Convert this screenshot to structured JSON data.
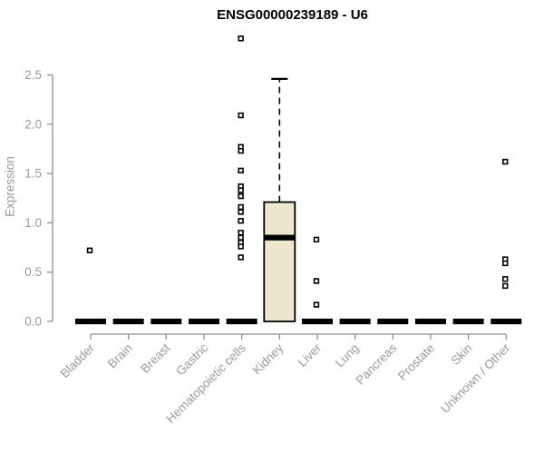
{
  "title": "ENSG00000239189 - U6",
  "colors": {
    "background": "#ffffff",
    "box_fill": "#ECE7CD",
    "box_stroke": "#000000",
    "median": "#000000",
    "outlier_stroke": "#000000",
    "outlier_fill": "#ffffff",
    "axis": "#8f8f8f",
    "tick_label": "#9a9a9a",
    "title_color": "#000000"
  },
  "chart_data": {
    "type": "boxplot",
    "title": "ENSG00000239189 - U6",
    "ylabel": "Expression",
    "xlabel": "",
    "ylim": [
      0,
      2.9
    ],
    "grid": false,
    "legend": "none",
    "y_ticks": [
      0,
      0.5,
      1,
      1.5,
      2,
      2.5
    ],
    "y_tick_labels": [
      "0.0",
      "0.5",
      "1.0",
      "1.5",
      "2.0",
      "2.5"
    ],
    "categories": [
      "Bladder",
      "Brain",
      "Breast",
      "Gastric",
      "Hematopoietic cells",
      "Kidney",
      "Liver",
      "Lung",
      "Pancreas",
      "Prostate",
      "Skin",
      "Unknown / Other"
    ],
    "boxes": [
      {
        "category": "Bladder",
        "q1": 0,
        "median": 0,
        "q3": 0,
        "whisker_low": 0,
        "whisker_high": 0,
        "outliers": [
          0.72
        ]
      },
      {
        "category": "Brain",
        "q1": 0,
        "median": 0,
        "q3": 0,
        "whisker_low": 0,
        "whisker_high": 0,
        "outliers": []
      },
      {
        "category": "Breast",
        "q1": 0,
        "median": 0,
        "q3": 0,
        "whisker_low": 0,
        "whisker_high": 0,
        "outliers": []
      },
      {
        "category": "Gastric",
        "q1": 0,
        "median": 0,
        "q3": 0,
        "whisker_low": 0,
        "whisker_high": 0,
        "outliers": []
      },
      {
        "category": "Hematopoietic cells",
        "q1": 0,
        "median": 0,
        "q3": 0,
        "whisker_low": 0,
        "whisker_high": 0,
        "outliers": [
          2.87,
          2.09,
          1.77,
          1.73,
          1.53,
          1.37,
          1.33,
          1.27,
          1.16,
          1.11,
          1.02,
          0.9,
          0.85,
          0.8,
          0.76,
          0.65
        ]
      },
      {
        "category": "Kidney",
        "q1": 0,
        "median": 0.85,
        "q3": 1.21,
        "whisker_low": 0,
        "whisker_high": 2.46,
        "outliers": []
      },
      {
        "category": "Liver",
        "q1": 0,
        "median": 0,
        "q3": 0,
        "whisker_low": 0,
        "whisker_high": 0,
        "outliers": [
          0.83,
          0.41,
          0.17
        ]
      },
      {
        "category": "Lung",
        "q1": 0,
        "median": 0,
        "q3": 0,
        "whisker_low": 0,
        "whisker_high": 0,
        "outliers": []
      },
      {
        "category": "Pancreas",
        "q1": 0,
        "median": 0,
        "q3": 0,
        "whisker_low": 0,
        "whisker_high": 0,
        "outliers": []
      },
      {
        "category": "Prostate",
        "q1": 0,
        "median": 0,
        "q3": 0,
        "whisker_low": 0,
        "whisker_high": 0,
        "outliers": []
      },
      {
        "category": "Skin",
        "q1": 0,
        "median": 0,
        "q3": 0,
        "whisker_low": 0,
        "whisker_high": 0,
        "outliers": []
      },
      {
        "category": "Unknown / Other",
        "q1": 0,
        "median": 0,
        "q3": 0,
        "whisker_low": 0,
        "whisker_high": 0,
        "outliers": [
          1.62,
          0.63,
          0.59,
          0.43,
          0.36
        ]
      }
    ]
  }
}
